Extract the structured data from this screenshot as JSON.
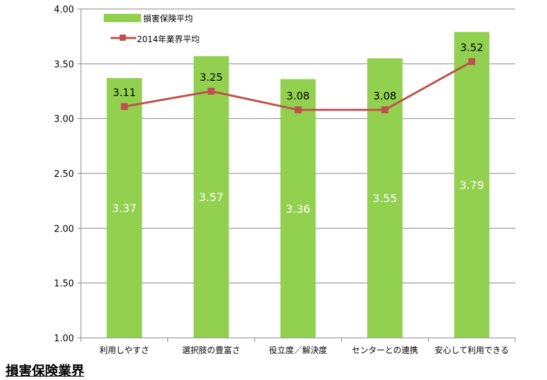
{
  "page_title": "損害保険業界",
  "colors": {
    "bar": "#92d050",
    "line": "#c0504d",
    "grid": "#868686",
    "axis": "#868686"
  },
  "chart_data": {
    "type": "bar",
    "categories": [
      "利用しやすさ",
      "選択肢の豊富さ",
      "役立度／解決度",
      "センターとの連携",
      "安心して利用できる"
    ],
    "series": [
      {
        "name": "損害保険平均",
        "type": "bar",
        "values": [
          3.37,
          3.57,
          3.36,
          3.55,
          3.79
        ]
      },
      {
        "name": "2014年業界平均",
        "type": "line",
        "values": [
          3.11,
          3.25,
          3.08,
          3.08,
          3.52
        ]
      }
    ],
    "y_ticks": [
      "1.00",
      "1.50",
      "2.00",
      "2.50",
      "3.00",
      "3.50",
      "4.00"
    ],
    "ylim": [
      1.0,
      4.0
    ],
    "grid": true,
    "legend_position": "top-left"
  }
}
